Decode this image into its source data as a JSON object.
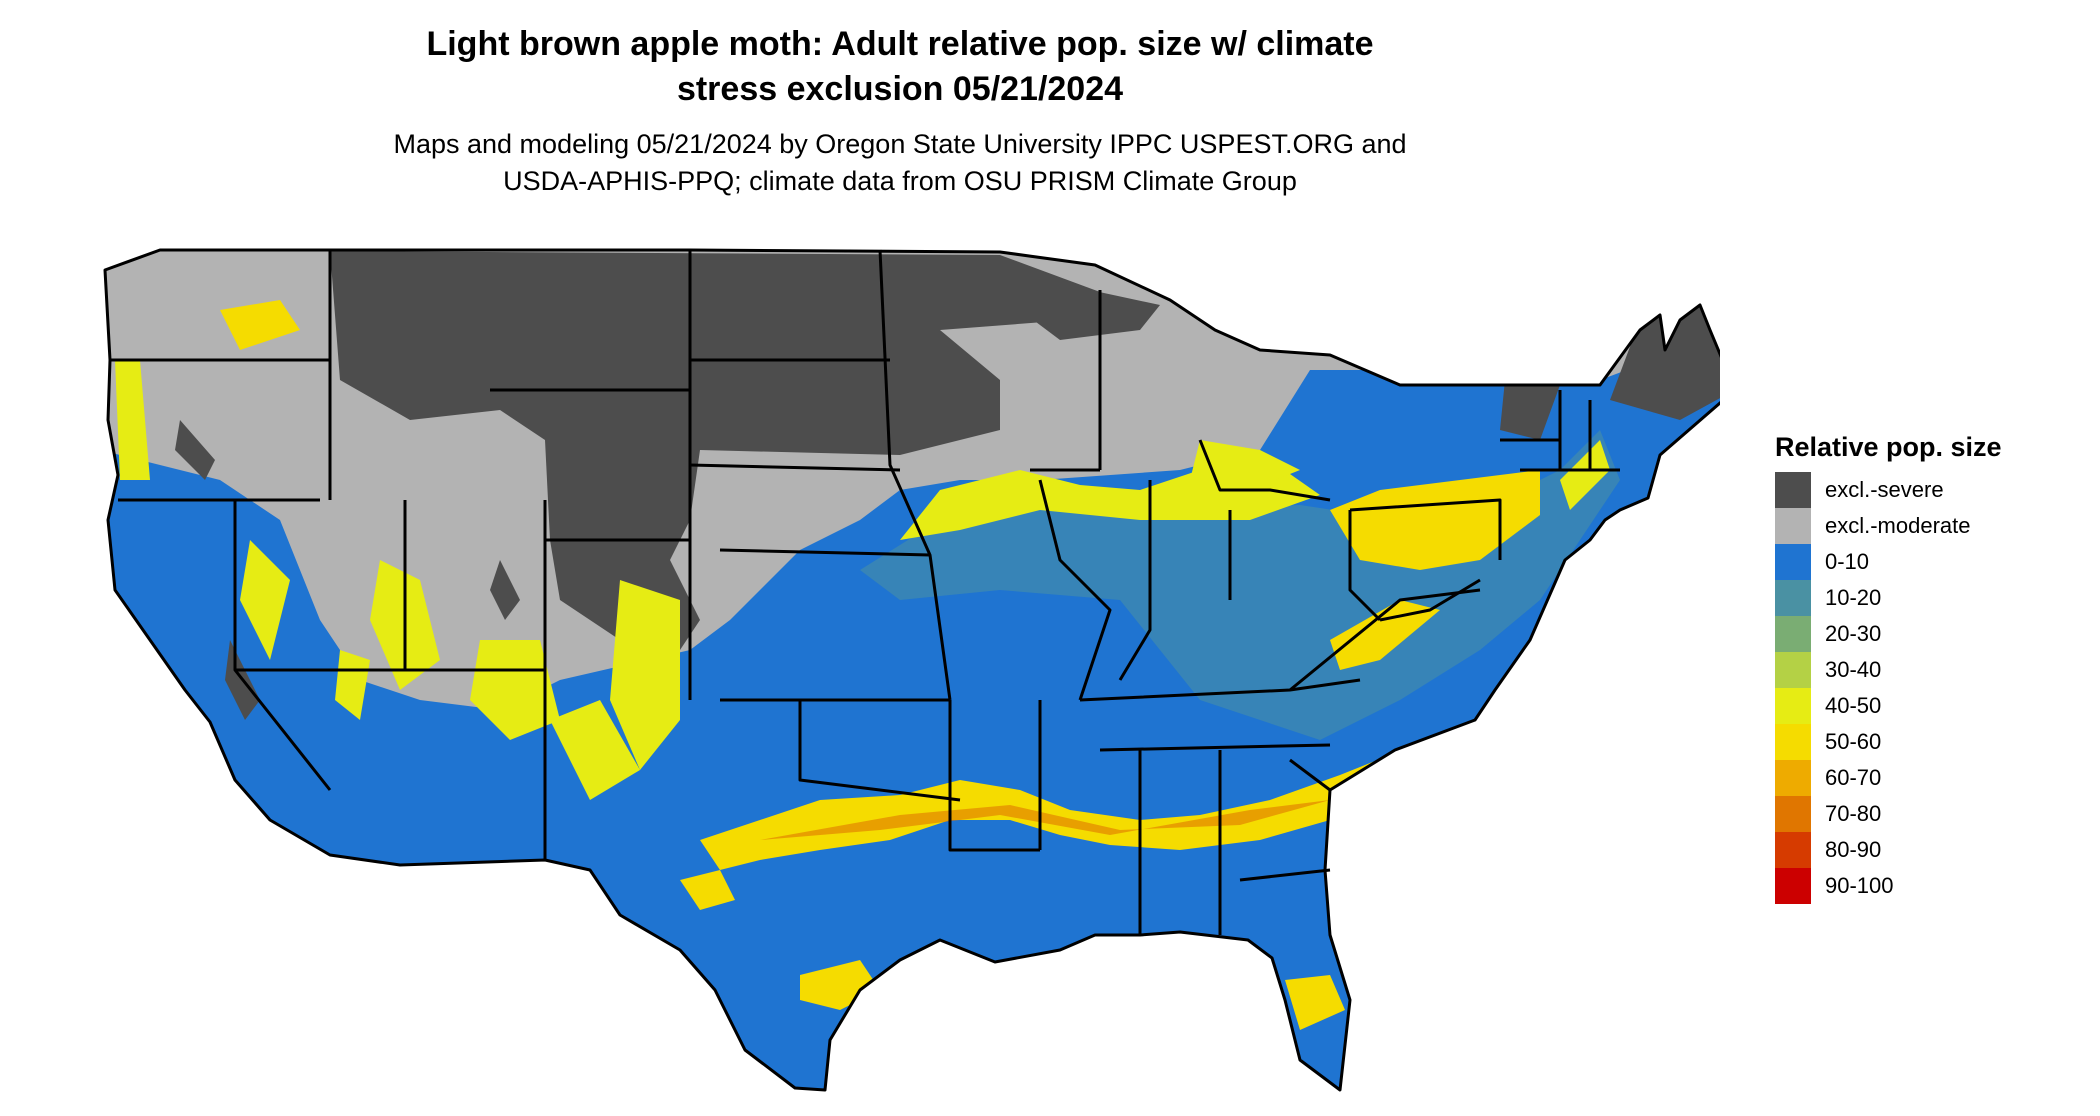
{
  "title": {
    "line1": "Light brown apple moth: Adult relative pop. size w/ climate",
    "line2": "stress exclusion 05/21/2024"
  },
  "subtitle": {
    "line1": "Maps and modeling 05/21/2024 by Oregon State University IPPC USPEST.ORG and",
    "line2": "USDA-APHIS-PPQ; climate data from OSU PRISM Climate Group"
  },
  "legend": {
    "title": "Relative pop. size",
    "items": [
      {
        "label": "excl.-severe",
        "color": "#4d4d4d"
      },
      {
        "label": "excl.-moderate",
        "color": "#b3b3b3"
      },
      {
        "label": "0-10",
        "color": "#1f74d1"
      },
      {
        "label": "10-20",
        "color": "#4a91a3"
      },
      {
        "label": "20-30",
        "color": "#7aad73"
      },
      {
        "label": "30-40",
        "color": "#b4d145"
      },
      {
        "label": "40-50",
        "color": "#e6ec14"
      },
      {
        "label": "50-60",
        "color": "#f5dc00"
      },
      {
        "label": "60-70",
        "color": "#eeab00"
      },
      {
        "label": "70-80",
        "color": "#e07600"
      },
      {
        "label": "80-90",
        "color": "#d63b00"
      },
      {
        "label": "90-100",
        "color": "#cc0000"
      }
    ]
  }
}
